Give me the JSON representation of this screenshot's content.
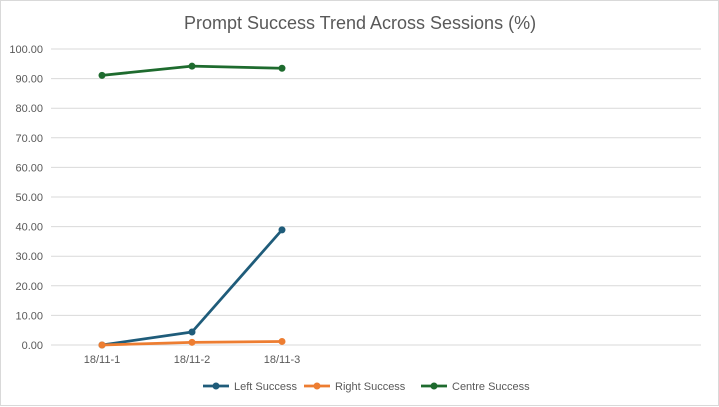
{
  "chart_data": {
    "type": "line",
    "title": "Prompt Success Trend Across Sessions (%)",
    "xlabel": "",
    "ylabel": "",
    "categories": [
      "18/11-1",
      "18/11-2",
      "18/11-3"
    ],
    "ylim": [
      0,
      100
    ],
    "y_ticks": [
      "0.00",
      "10.00",
      "20.00",
      "30.00",
      "40.00",
      "50.00",
      "60.00",
      "70.00",
      "80.00",
      "90.00",
      "100.00"
    ],
    "grid": true,
    "legend_position": "bottom",
    "series": [
      {
        "name": "Left Success",
        "color": "#1f5c7a",
        "values": [
          0,
          4.4,
          38.9
        ]
      },
      {
        "name": "Right Success",
        "color": "#ed7d31",
        "values": [
          0,
          0.9,
          1.2
        ]
      },
      {
        "name": "Centre Success",
        "color": "#1e6b2e",
        "values": [
          91.1,
          94.2,
          93.5
        ]
      }
    ]
  }
}
